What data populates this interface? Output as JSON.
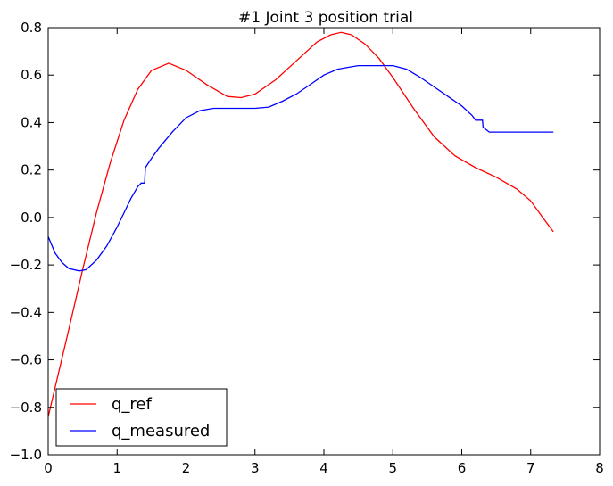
{
  "chart_data": {
    "type": "line",
    "title": "#1 Joint 3 position trial",
    "xlabel": "",
    "ylabel": "",
    "xlim": [
      0,
      8
    ],
    "ylim": [
      -1.0,
      0.8
    ],
    "x_ticks": [
      "0",
      "1",
      "2",
      "3",
      "4",
      "5",
      "6",
      "7",
      "8"
    ],
    "y_ticks": [
      "0.8",
      "0.6",
      "0.4",
      "0.2",
      "0.0",
      "−0.2",
      "−0.4",
      "−0.6",
      "−0.8",
      "−1.0"
    ],
    "grid": false,
    "legend_position": "lower-left",
    "series": [
      {
        "name": "q_ref",
        "color": "#ff0000",
        "points": [
          [
            0,
            -0.84
          ],
          [
            0.3,
            -0.47
          ],
          [
            0.5,
            -0.22
          ],
          [
            0.7,
            0.02
          ],
          [
            0.9,
            0.23
          ],
          [
            1.1,
            0.41
          ],
          [
            1.3,
            0.54
          ],
          [
            1.5,
            0.62
          ],
          [
            1.75,
            0.65
          ],
          [
            2.0,
            0.62
          ],
          [
            2.3,
            0.56
          ],
          [
            2.6,
            0.51
          ],
          [
            2.8,
            0.505
          ],
          [
            3.0,
            0.52
          ],
          [
            3.3,
            0.58
          ],
          [
            3.6,
            0.66
          ],
          [
            3.9,
            0.74
          ],
          [
            4.1,
            0.77
          ],
          [
            4.25,
            0.78
          ],
          [
            4.4,
            0.77
          ],
          [
            4.6,
            0.73
          ],
          [
            4.8,
            0.67
          ],
          [
            5.0,
            0.59
          ],
          [
            5.3,
            0.46
          ],
          [
            5.6,
            0.34
          ],
          [
            5.9,
            0.26
          ],
          [
            6.2,
            0.21
          ],
          [
            6.5,
            0.17
          ],
          [
            6.8,
            0.12
          ],
          [
            7.0,
            0.07
          ],
          [
            7.2,
            -0.01
          ],
          [
            7.33,
            -0.06
          ]
        ]
      },
      {
        "name": "q_measured",
        "color": "#0000ff",
        "points": [
          [
            0,
            -0.08
          ],
          [
            0.1,
            -0.15
          ],
          [
            0.2,
            -0.19
          ],
          [
            0.3,
            -0.215
          ],
          [
            0.45,
            -0.225
          ],
          [
            0.55,
            -0.22
          ],
          [
            0.7,
            -0.18
          ],
          [
            0.85,
            -0.12
          ],
          [
            1.0,
            -0.04
          ],
          [
            1.1,
            0.02
          ],
          [
            1.2,
            0.08
          ],
          [
            1.3,
            0.13
          ],
          [
            1.35,
            0.145
          ],
          [
            1.4,
            0.145
          ],
          [
            1.41,
            0.21
          ],
          [
            1.5,
            0.25
          ],
          [
            1.6,
            0.29
          ],
          [
            1.8,
            0.36
          ],
          [
            2.0,
            0.42
          ],
          [
            2.2,
            0.45
          ],
          [
            2.4,
            0.46
          ],
          [
            3.0,
            0.46
          ],
          [
            3.2,
            0.465
          ],
          [
            3.4,
            0.49
          ],
          [
            3.6,
            0.52
          ],
          [
            3.8,
            0.56
          ],
          [
            4.0,
            0.6
          ],
          [
            4.2,
            0.625
          ],
          [
            4.4,
            0.635
          ],
          [
            4.5,
            0.64
          ],
          [
            5.0,
            0.64
          ],
          [
            5.2,
            0.625
          ],
          [
            5.4,
            0.59
          ],
          [
            5.6,
            0.55
          ],
          [
            5.8,
            0.51
          ],
          [
            6.0,
            0.47
          ],
          [
            6.15,
            0.43
          ],
          [
            6.2,
            0.41
          ],
          [
            6.3,
            0.41
          ],
          [
            6.31,
            0.38
          ],
          [
            6.4,
            0.36
          ],
          [
            7.33,
            0.36
          ]
        ]
      }
    ]
  }
}
